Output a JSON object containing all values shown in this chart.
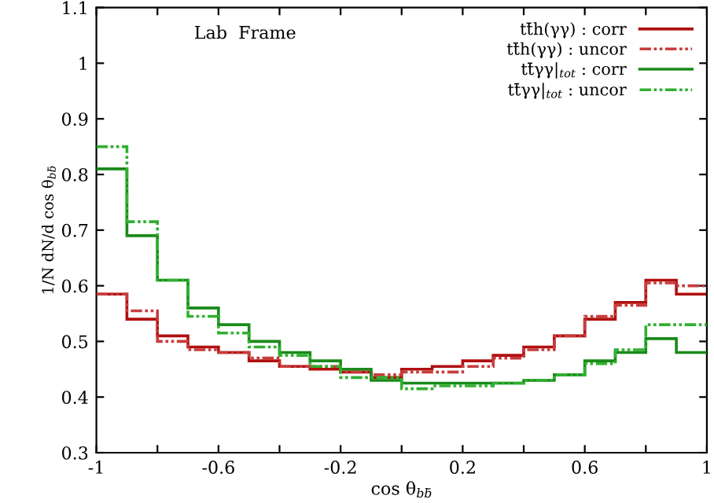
{
  "chart_data": {
    "type": "histogram",
    "xlabel": "cos θ$_{bb̄}$",
    "ylabel": "1/N dN/d cos θ$_{bb̄}$",
    "annotations": [
      "Lab  Frame"
    ],
    "bins": [
      -1,
      -0.9,
      -0.8,
      -0.7,
      -0.6,
      -0.5,
      -0.4,
      -0.3,
      -0.2,
      -0.1,
      0,
      0.1,
      0.2,
      0.3,
      0.4,
      0.5,
      0.6,
      0.7,
      0.8,
      0.9,
      1
    ],
    "series": [
      {
        "name": "tt̄h(γγ) : corr",
        "color": "#b01010",
        "line_style": "solid",
        "values": [
          0.585,
          0.54,
          0.51,
          0.49,
          0.48,
          0.465,
          0.455,
          0.45,
          0.445,
          0.435,
          0.45,
          0.455,
          0.465,
          0.475,
          0.49,
          0.51,
          0.54,
          0.57,
          0.61,
          0.585
        ]
      },
      {
        "name": "tt̄h(γγ) : uncor",
        "color": "#c83c3c",
        "line_style": "dotted",
        "values": [
          0.585,
          0.555,
          0.5,
          0.485,
          0.48,
          0.47,
          0.455,
          0.455,
          0.445,
          0.44,
          0.445,
          0.445,
          0.455,
          0.47,
          0.485,
          0.51,
          0.545,
          0.565,
          0.605,
          0.6
        ]
      },
      {
        "name": "tt̄γγ|$_{tot}$ : corr",
        "color": "#1a8a1a",
        "line_style": "solid",
        "values": [
          0.81,
          0.69,
          0.61,
          0.56,
          0.53,
          0.5,
          0.48,
          0.465,
          0.45,
          0.43,
          0.425,
          0.425,
          0.425,
          0.425,
          0.43,
          0.44,
          0.465,
          0.48,
          0.505,
          0.48
        ]
      },
      {
        "name": "tt̄γγ|$_{tot}$ : uncor",
        "color": "#30b030",
        "line_style": "dotted",
        "values": [
          0.85,
          0.715,
          0.61,
          0.545,
          0.515,
          0.49,
          0.475,
          0.455,
          0.435,
          0.435,
          0.415,
          0.42,
          0.42,
          0.425,
          0.43,
          0.44,
          0.46,
          0.485,
          0.53,
          0.53
        ]
      }
    ],
    "xlim": [
      -1,
      1
    ],
    "ylim": [
      0.3,
      1.1
    ],
    "xticks": [
      -1,
      {
        "value": -0.8,
        "label": null
      },
      -0.6,
      {
        "value": -0.4,
        "label": null
      },
      -0.2,
      {
        "value": 0,
        "label": null
      },
      0.2,
      {
        "value": 0.4,
        "label": null
      },
      0.6,
      {
        "value": 0.8,
        "label": null
      },
      1
    ],
    "yticks": [
      0.3,
      0.4,
      0.5,
      0.6,
      0.7,
      0.8,
      0.9,
      1,
      1.1
    ],
    "grid": false,
    "legend": "top right"
  }
}
